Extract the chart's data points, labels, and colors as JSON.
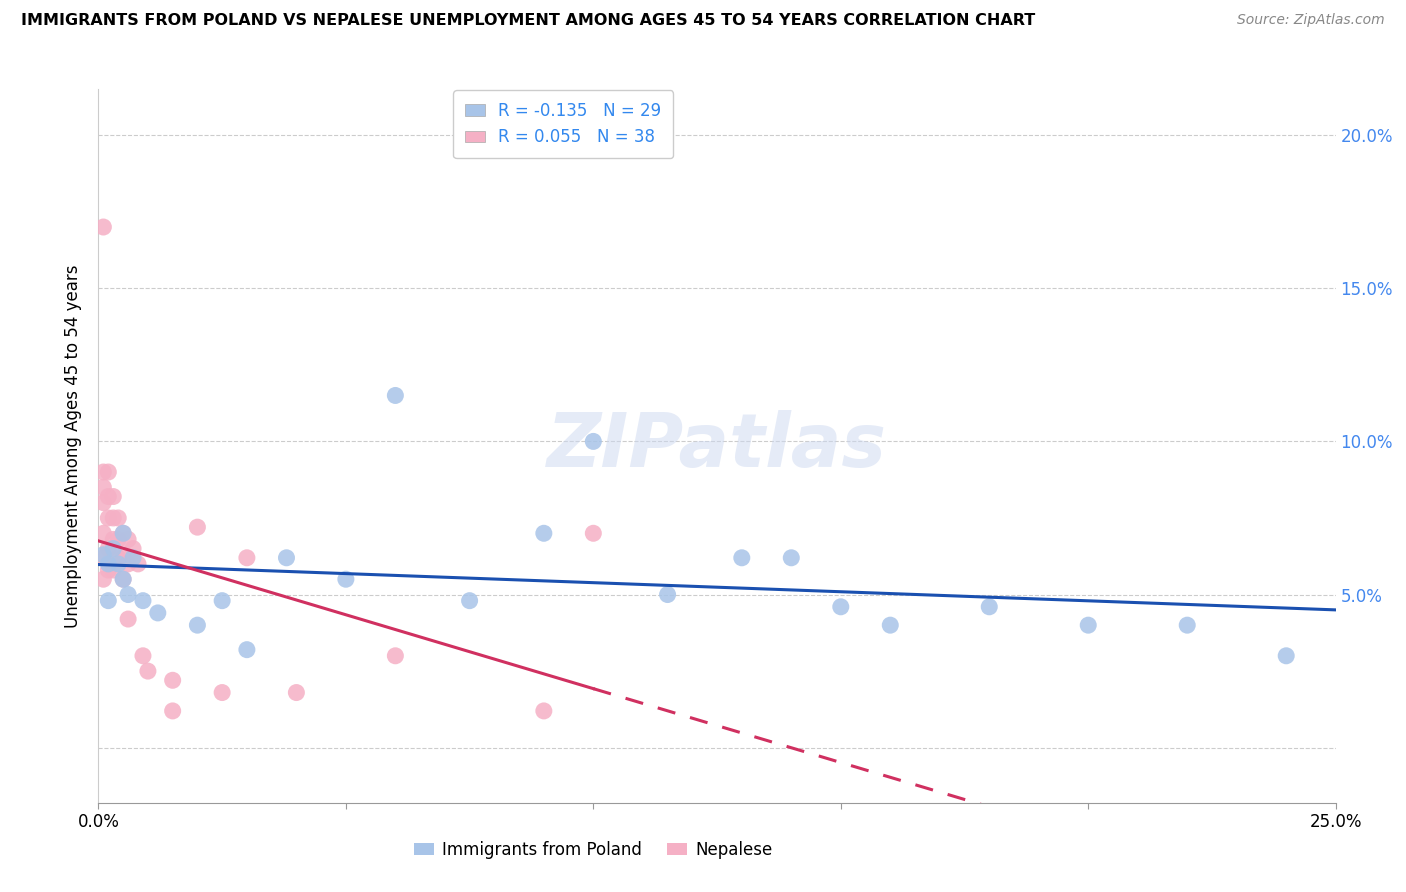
{
  "title": "IMMIGRANTS FROM POLAND VS NEPALESE UNEMPLOYMENT AMONG AGES 45 TO 54 YEARS CORRELATION CHART",
  "source": "Source: ZipAtlas.com",
  "ylabel": "Unemployment Among Ages 45 to 54 years",
  "xlim": [
    0.0,
    0.25
  ],
  "ylim": [
    -0.018,
    0.215
  ],
  "legend_blue_r": "-0.135",
  "legend_blue_n": "29",
  "legend_pink_r": "0.055",
  "legend_pink_n": "38",
  "legend_blue_label": "Immigrants from Poland",
  "legend_pink_label": "Nepalese",
  "blue_scatter_color": "#a8c4e8",
  "pink_scatter_color": "#f5b0c5",
  "trend_blue_color": "#1a50b0",
  "trend_pink_color": "#d03060",
  "watermark": "ZIPatlas",
  "poland_x": [
    0.001,
    0.002,
    0.002,
    0.003,
    0.004,
    0.005,
    0.005,
    0.006,
    0.007,
    0.009,
    0.012,
    0.02,
    0.025,
    0.03,
    0.038,
    0.05,
    0.06,
    0.075,
    0.09,
    0.1,
    0.115,
    0.13,
    0.14,
    0.15,
    0.16,
    0.18,
    0.2,
    0.22,
    0.24
  ],
  "poland_y": [
    0.063,
    0.06,
    0.048,
    0.065,
    0.06,
    0.055,
    0.07,
    0.05,
    0.062,
    0.048,
    0.044,
    0.04,
    0.048,
    0.032,
    0.062,
    0.055,
    0.115,
    0.048,
    0.07,
    0.1,
    0.05,
    0.062,
    0.062,
    0.046,
    0.04,
    0.046,
    0.04,
    0.04,
    0.03
  ],
  "nepal_x": [
    0.001,
    0.001,
    0.001,
    0.001,
    0.001,
    0.001,
    0.001,
    0.002,
    0.002,
    0.002,
    0.002,
    0.002,
    0.003,
    0.003,
    0.003,
    0.003,
    0.004,
    0.004,
    0.004,
    0.005,
    0.005,
    0.005,
    0.006,
    0.006,
    0.007,
    0.008,
    0.009,
    0.01,
    0.015,
    0.02,
    0.025,
    0.03,
    0.04,
    0.06,
    0.09,
    0.1,
    0.015,
    0.006
  ],
  "nepal_y": [
    0.17,
    0.09,
    0.085,
    0.08,
    0.07,
    0.062,
    0.055,
    0.09,
    0.082,
    0.075,
    0.065,
    0.058,
    0.082,
    0.075,
    0.068,
    0.058,
    0.075,
    0.068,
    0.062,
    0.07,
    0.062,
    0.055,
    0.068,
    0.06,
    0.065,
    0.06,
    0.03,
    0.025,
    0.022,
    0.072,
    0.018,
    0.062,
    0.018,
    0.03,
    0.012,
    0.07,
    0.012,
    0.042
  ]
}
